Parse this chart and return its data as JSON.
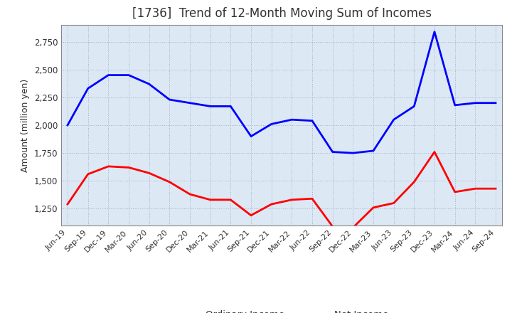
{
  "title": "[1736]  Trend of 12-Month Moving Sum of Incomes",
  "ylabel": "Amount (million yen)",
  "x_labels": [
    "Jun-19",
    "Sep-19",
    "Dec-19",
    "Mar-20",
    "Jun-20",
    "Sep-20",
    "Dec-20",
    "Mar-21",
    "Jun-21",
    "Sep-21",
    "Dec-21",
    "Mar-22",
    "Jun-22",
    "Sep-22",
    "Dec-22",
    "Mar-23",
    "Jun-23",
    "Sep-23",
    "Dec-23",
    "Mar-24",
    "Jun-24",
    "Sep-24"
  ],
  "ordinary_income": [
    2000,
    2330,
    2450,
    2450,
    2370,
    2230,
    2200,
    2170,
    2170,
    1900,
    2010,
    2050,
    2040,
    1760,
    1750,
    1770,
    2050,
    2170,
    2840,
    2180,
    2200,
    2200
  ],
  "net_income": [
    1290,
    1560,
    1630,
    1620,
    1570,
    1490,
    1380,
    1330,
    1330,
    1190,
    1290,
    1330,
    1340,
    1090,
    1080,
    1260,
    1300,
    1490,
    1760,
    1400,
    1430,
    1430
  ],
  "ordinary_color": "#0000ff",
  "net_color": "#ff0000",
  "ylim_min": 1100,
  "ylim_max": 2900,
  "yticks": [
    1250,
    1500,
    1750,
    2000,
    2250,
    2500,
    2750
  ],
  "background_color": "#ffffff",
  "plot_bg_color": "#dce9f5",
  "grid_color": "#aaaacc",
  "title_color": "#333333",
  "line_width": 2.0
}
